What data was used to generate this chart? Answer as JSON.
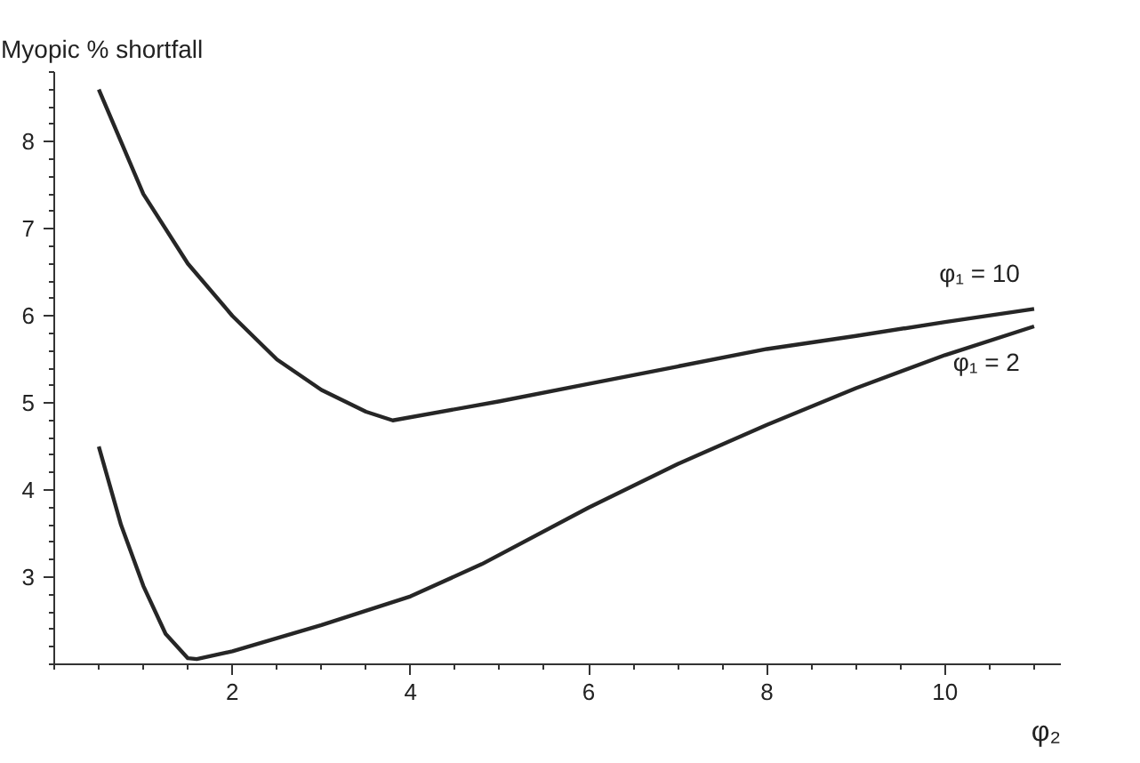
{
  "chart_data": {
    "type": "line",
    "ylabel": "Myopic % shortfall",
    "xlabel": "φ₂",
    "xlim": [
      0,
      11.3
    ],
    "ylim": [
      2,
      8.8
    ],
    "xticks": [
      2,
      4,
      6,
      8,
      10
    ],
    "yticks": [
      3,
      4,
      5,
      6,
      7,
      8
    ],
    "grid": false,
    "series": [
      {
        "name": "φ₁ = 10",
        "color": "#262626",
        "x": [
          0.5,
          0.75,
          1,
          1.5,
          2,
          2.5,
          3,
          3.5,
          3.8,
          5,
          6,
          7,
          8,
          9,
          10,
          11
        ],
        "values": [
          8.6,
          8.0,
          7.4,
          6.6,
          6.0,
          5.5,
          5.15,
          4.9,
          4.8,
          5.02,
          5.22,
          5.42,
          5.62,
          5.77,
          5.93,
          6.08
        ]
      },
      {
        "name": "φ₁ = 2",
        "color": "#262626",
        "x": [
          0.5,
          0.75,
          1,
          1.25,
          1.5,
          1.6,
          2,
          3,
          4,
          4.8,
          6,
          7,
          8,
          9,
          10,
          11
        ],
        "values": [
          4.5,
          3.6,
          2.9,
          2.35,
          2.07,
          2.06,
          2.15,
          2.45,
          2.78,
          3.15,
          3.8,
          4.3,
          4.75,
          5.17,
          5.55,
          5.88
        ]
      }
    ]
  }
}
